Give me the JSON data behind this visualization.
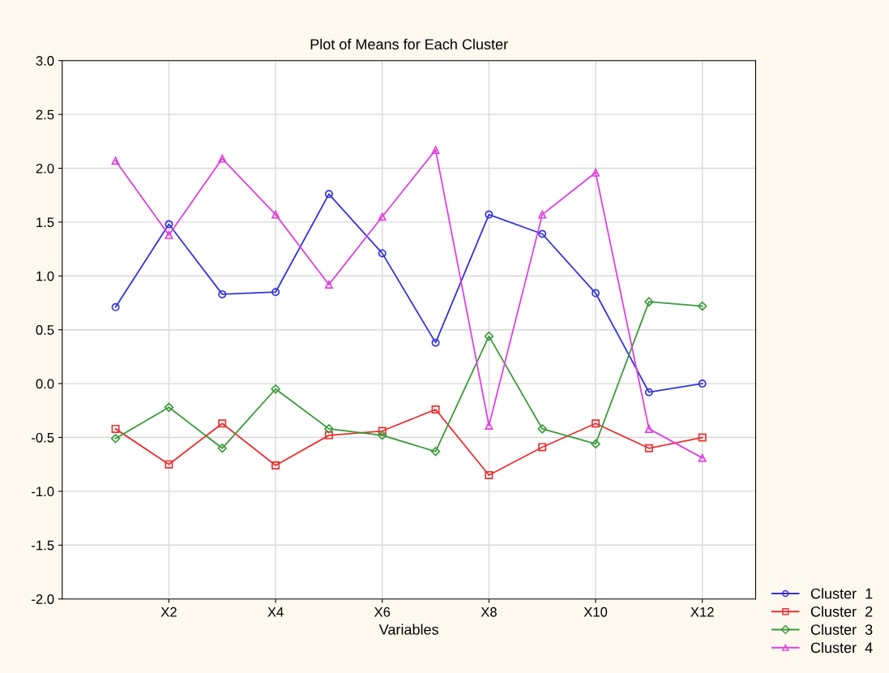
{
  "chart_data": {
    "type": "line",
    "title": "Plot of Means for Each Cluster",
    "xlabel": "Variables",
    "categories": [
      null,
      "X2",
      null,
      "X4",
      null,
      "X6",
      null,
      "X8",
      null,
      "X10",
      null,
      "X12"
    ],
    "series": [
      {
        "name": "Cluster  1",
        "color": "#3333dd",
        "marker": "circle",
        "values": [
          0.71,
          1.48,
          0.83,
          0.85,
          1.76,
          1.21,
          0.38,
          1.57,
          1.39,
          0.84,
          -0.08,
          0.0
        ]
      },
      {
        "name": "Cluster  2",
        "color": "#e83030",
        "marker": "square",
        "values": [
          -0.42,
          -0.75,
          -0.37,
          -0.76,
          -0.48,
          -0.44,
          -0.24,
          -0.85,
          -0.59,
          -0.37,
          -0.6,
          -0.5
        ]
      },
      {
        "name": "Cluster  3",
        "color": "#3a9a3a",
        "marker": "diamond",
        "values": [
          -0.51,
          -0.22,
          -0.6,
          -0.05,
          -0.42,
          -0.48,
          -0.63,
          0.44,
          -0.42,
          -0.56,
          0.76,
          0.72
        ]
      },
      {
        "name": "Cluster  4",
        "color": "#e040e0",
        "marker": "triangle",
        "values": [
          2.07,
          1.38,
          2.09,
          1.57,
          0.92,
          1.55,
          2.17,
          -0.39,
          1.57,
          1.96,
          -0.42,
          -0.69
        ]
      }
    ],
    "ylim": [
      -2.0,
      3.0
    ],
    "yticks": [
      {
        "value": -2,
        "label": "-2.0"
      },
      {
        "value": -1.5,
        "label": "-1.5"
      },
      {
        "value": -1,
        "label": "-1.0"
      },
      {
        "value": -0.5,
        "label": "-0.5"
      },
      {
        "value": 0,
        "label": "0.0"
      },
      {
        "value": 0.5,
        "label": "0.5"
      },
      {
        "value": 1,
        "label": "1.0"
      },
      {
        "value": 1.5,
        "label": "1.5"
      },
      {
        "value": 2,
        "label": "2.0"
      },
      {
        "value": 2.5,
        "label": "2.5"
      },
      {
        "value": 3,
        "label": "3.0"
      }
    ],
    "grid": true,
    "legend": "bottom right",
    "line_style": "solid"
  }
}
